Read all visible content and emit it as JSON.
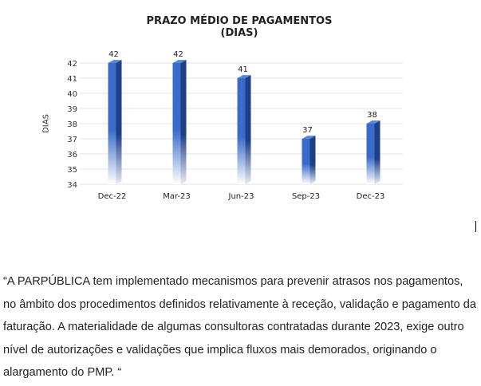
{
  "chart_data": {
    "type": "bar",
    "title": "PRAZO MÉDIO DE PAGAMENTOS",
    "subtitle": "(DIAS)",
    "ylabel": "DIAS",
    "xlabel": "",
    "categories": [
      "Dec-22",
      "Mar-23",
      "Jun-23",
      "Sep-23",
      "Dec-23"
    ],
    "values": [
      42,
      42,
      41,
      37,
      38
    ],
    "ylim": [
      34,
      42
    ],
    "yticks": [
      34,
      35,
      36,
      37,
      38,
      39,
      40,
      41,
      42
    ],
    "grid": true,
    "bar_color": "#3a6bc9",
    "bar_dark": "#1f3f86"
  },
  "quote": {
    "text": "“A PARPÚBLICA tem implementado mecanismos para prevenir atrasos nos pagamentos, no âmbito dos procedimentos definidos relativamente à receção, validação e pagamento da faturação. A materialidade de algumas consultoras contratadas durante 2023, exige outro nível de autorizações e validações que implica fluxos mais demorados, originando o alargamento do PMP. “"
  }
}
